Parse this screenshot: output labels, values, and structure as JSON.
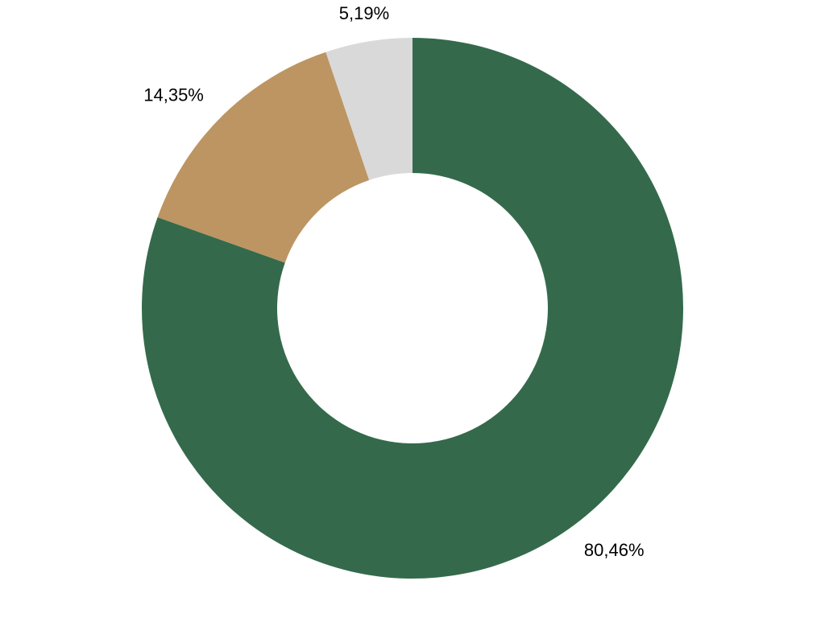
{
  "chart_data": {
    "type": "donut",
    "values": [
      80.46,
      14.35,
      5.19
    ],
    "value_labels": [
      "80,46%",
      "14,35%",
      "5,19%"
    ],
    "colors": [
      "#346a4b",
      "#bc9562",
      "#d9d9d9"
    ]
  }
}
